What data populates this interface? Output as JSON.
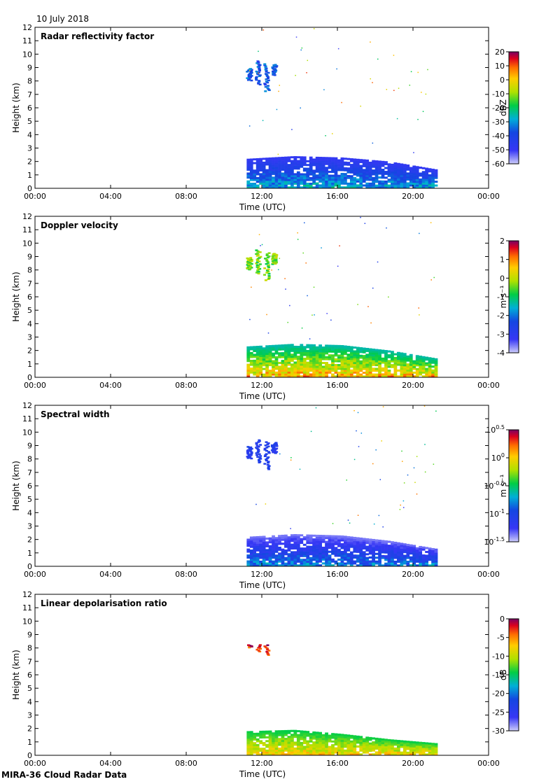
{
  "header": {
    "date": "10 July 2018"
  },
  "footer": {
    "caption": "MIRA-36 Cloud Radar Data"
  },
  "chart_data": [
    {
      "type": "heatmap",
      "title": "Radar reflectivity factor",
      "xlabel": "Time (UTC)",
      "ylabel": "Height (km)",
      "xticks": [
        "00:00",
        "04:00",
        "08:00",
        "12:00",
        "16:00",
        "20:00",
        "00:00"
      ],
      "xlim_hours": [
        0,
        24
      ],
      "ylim": [
        0,
        12
      ],
      "yticks": [
        0,
        1,
        2,
        3,
        4,
        5,
        6,
        7,
        8,
        9,
        10,
        11,
        12
      ],
      "colorbar": {
        "label": "dBZ",
        "ticks": [
          "20",
          "10",
          "0",
          "-10",
          "-20",
          "-30",
          "-40",
          "-50",
          "-60"
        ],
        "range": [
          -60,
          20
        ],
        "scale": "linear"
      },
      "features": [
        {
          "kind": "boundary_layer_echo",
          "t_start": 11.2,
          "t_end": 21.3,
          "top_km": [
            2.2,
            2.4,
            2.3,
            2.0,
            1.4
          ],
          "value_range": [
            -50,
            -20
          ]
        },
        {
          "kind": "ice_cloud",
          "t_start": 11.2,
          "t_end": 13.0,
          "base_km": 7.3,
          "top_km": 9.6,
          "value_range": [
            -45,
            -30
          ]
        },
        {
          "kind": "sparse_noise",
          "t_start": 11.2,
          "t_end": 21.3,
          "height_km": [
            2.5,
            12
          ]
        }
      ]
    },
    {
      "type": "heatmap",
      "title": "Doppler velocity",
      "xlabel": "Time (UTC)",
      "ylabel": "Height (km)",
      "xticks": [
        "00:00",
        "04:00",
        "08:00",
        "12:00",
        "16:00",
        "20:00",
        "00:00"
      ],
      "xlim_hours": [
        0,
        24
      ],
      "ylim": [
        0,
        12
      ],
      "yticks": [
        0,
        1,
        2,
        3,
        4,
        5,
        6,
        7,
        8,
        9,
        10,
        11,
        12
      ],
      "colorbar": {
        "label": "m s⁻¹",
        "ticks": [
          "2",
          "1",
          "0",
          "-1",
          "-2",
          "-3",
          "-4"
        ],
        "range": [
          -4,
          2
        ],
        "scale": "linear"
      },
      "features": [
        {
          "kind": "boundary_layer_echo",
          "t_start": 11.2,
          "t_end": 21.3,
          "top_km": [
            2.3,
            2.5,
            2.4,
            2.0,
            1.4
          ],
          "value_range": [
            -1.5,
            1.5
          ]
        },
        {
          "kind": "ice_cloud",
          "t_start": 11.2,
          "t_end": 13.0,
          "base_km": 7.3,
          "top_km": 9.6,
          "value_range": [
            -1.0,
            0.2
          ]
        },
        {
          "kind": "sparse_noise",
          "t_start": 11.2,
          "t_end": 21.3,
          "height_km": [
            2.5,
            12
          ]
        }
      ]
    },
    {
      "type": "heatmap",
      "title": "Spectral width",
      "xlabel": "Time (UTC)",
      "ylabel": "Height (km)",
      "xticks": [
        "00:00",
        "04:00",
        "08:00",
        "12:00",
        "16:00",
        "20:00",
        "00:00"
      ],
      "xlim_hours": [
        0,
        24
      ],
      "ylim": [
        0,
        12
      ],
      "yticks": [
        0,
        1,
        2,
        3,
        4,
        5,
        6,
        7,
        8,
        9,
        10,
        11,
        12
      ],
      "colorbar": {
        "label": "m s⁻¹",
        "ticks": [
          "10^0.5",
          "10^0",
          "10^-0.5",
          "10^-1",
          "10^-1.5"
        ],
        "range": [
          -1.5,
          0.5
        ],
        "scale": "log10"
      },
      "features": [
        {
          "kind": "boundary_layer_echo",
          "t_start": 11.2,
          "t_end": 21.3,
          "top_km": [
            2.2,
            2.4,
            2.3,
            1.9,
            1.3
          ],
          "value_range": [
            -1.4,
            -0.6
          ]
        },
        {
          "kind": "ice_cloud",
          "t_start": 11.2,
          "t_end": 13.0,
          "base_km": 7.3,
          "top_km": 9.5,
          "value_range": [
            -1.2,
            -1.0
          ]
        },
        {
          "kind": "sparse_noise",
          "t_start": 11.2,
          "t_end": 21.3,
          "height_km": [
            2.5,
            12
          ]
        }
      ]
    },
    {
      "type": "heatmap",
      "title": "Linear depolarisation ratio",
      "xlabel": "Time (UTC)",
      "ylabel": "Height (km)",
      "xticks": [
        "00:00",
        "04:00",
        "08:00",
        "12:00",
        "16:00",
        "20:00",
        "00:00"
      ],
      "xlim_hours": [
        0,
        24
      ],
      "ylim": [
        0,
        12
      ],
      "yticks": [
        0,
        1,
        2,
        3,
        4,
        5,
        6,
        7,
        8,
        9,
        10,
        11,
        12
      ],
      "colorbar": {
        "label": "dB",
        "ticks": [
          "0",
          "-5",
          "-10",
          "-15",
          "-20",
          "-25",
          "-30"
        ],
        "range": [
          -30,
          0
        ],
        "scale": "linear"
      },
      "features": [
        {
          "kind": "boundary_layer_echo",
          "t_start": 11.2,
          "t_end": 21.3,
          "top_km": [
            1.8,
            1.9,
            1.6,
            1.2,
            0.9
          ],
          "value_range": [
            -15,
            -5
          ]
        },
        {
          "kind": "ice_cloud",
          "t_start": 11.2,
          "t_end": 12.6,
          "base_km": 7.5,
          "top_km": 8.3,
          "value_range": [
            -5,
            0
          ]
        }
      ]
    }
  ]
}
